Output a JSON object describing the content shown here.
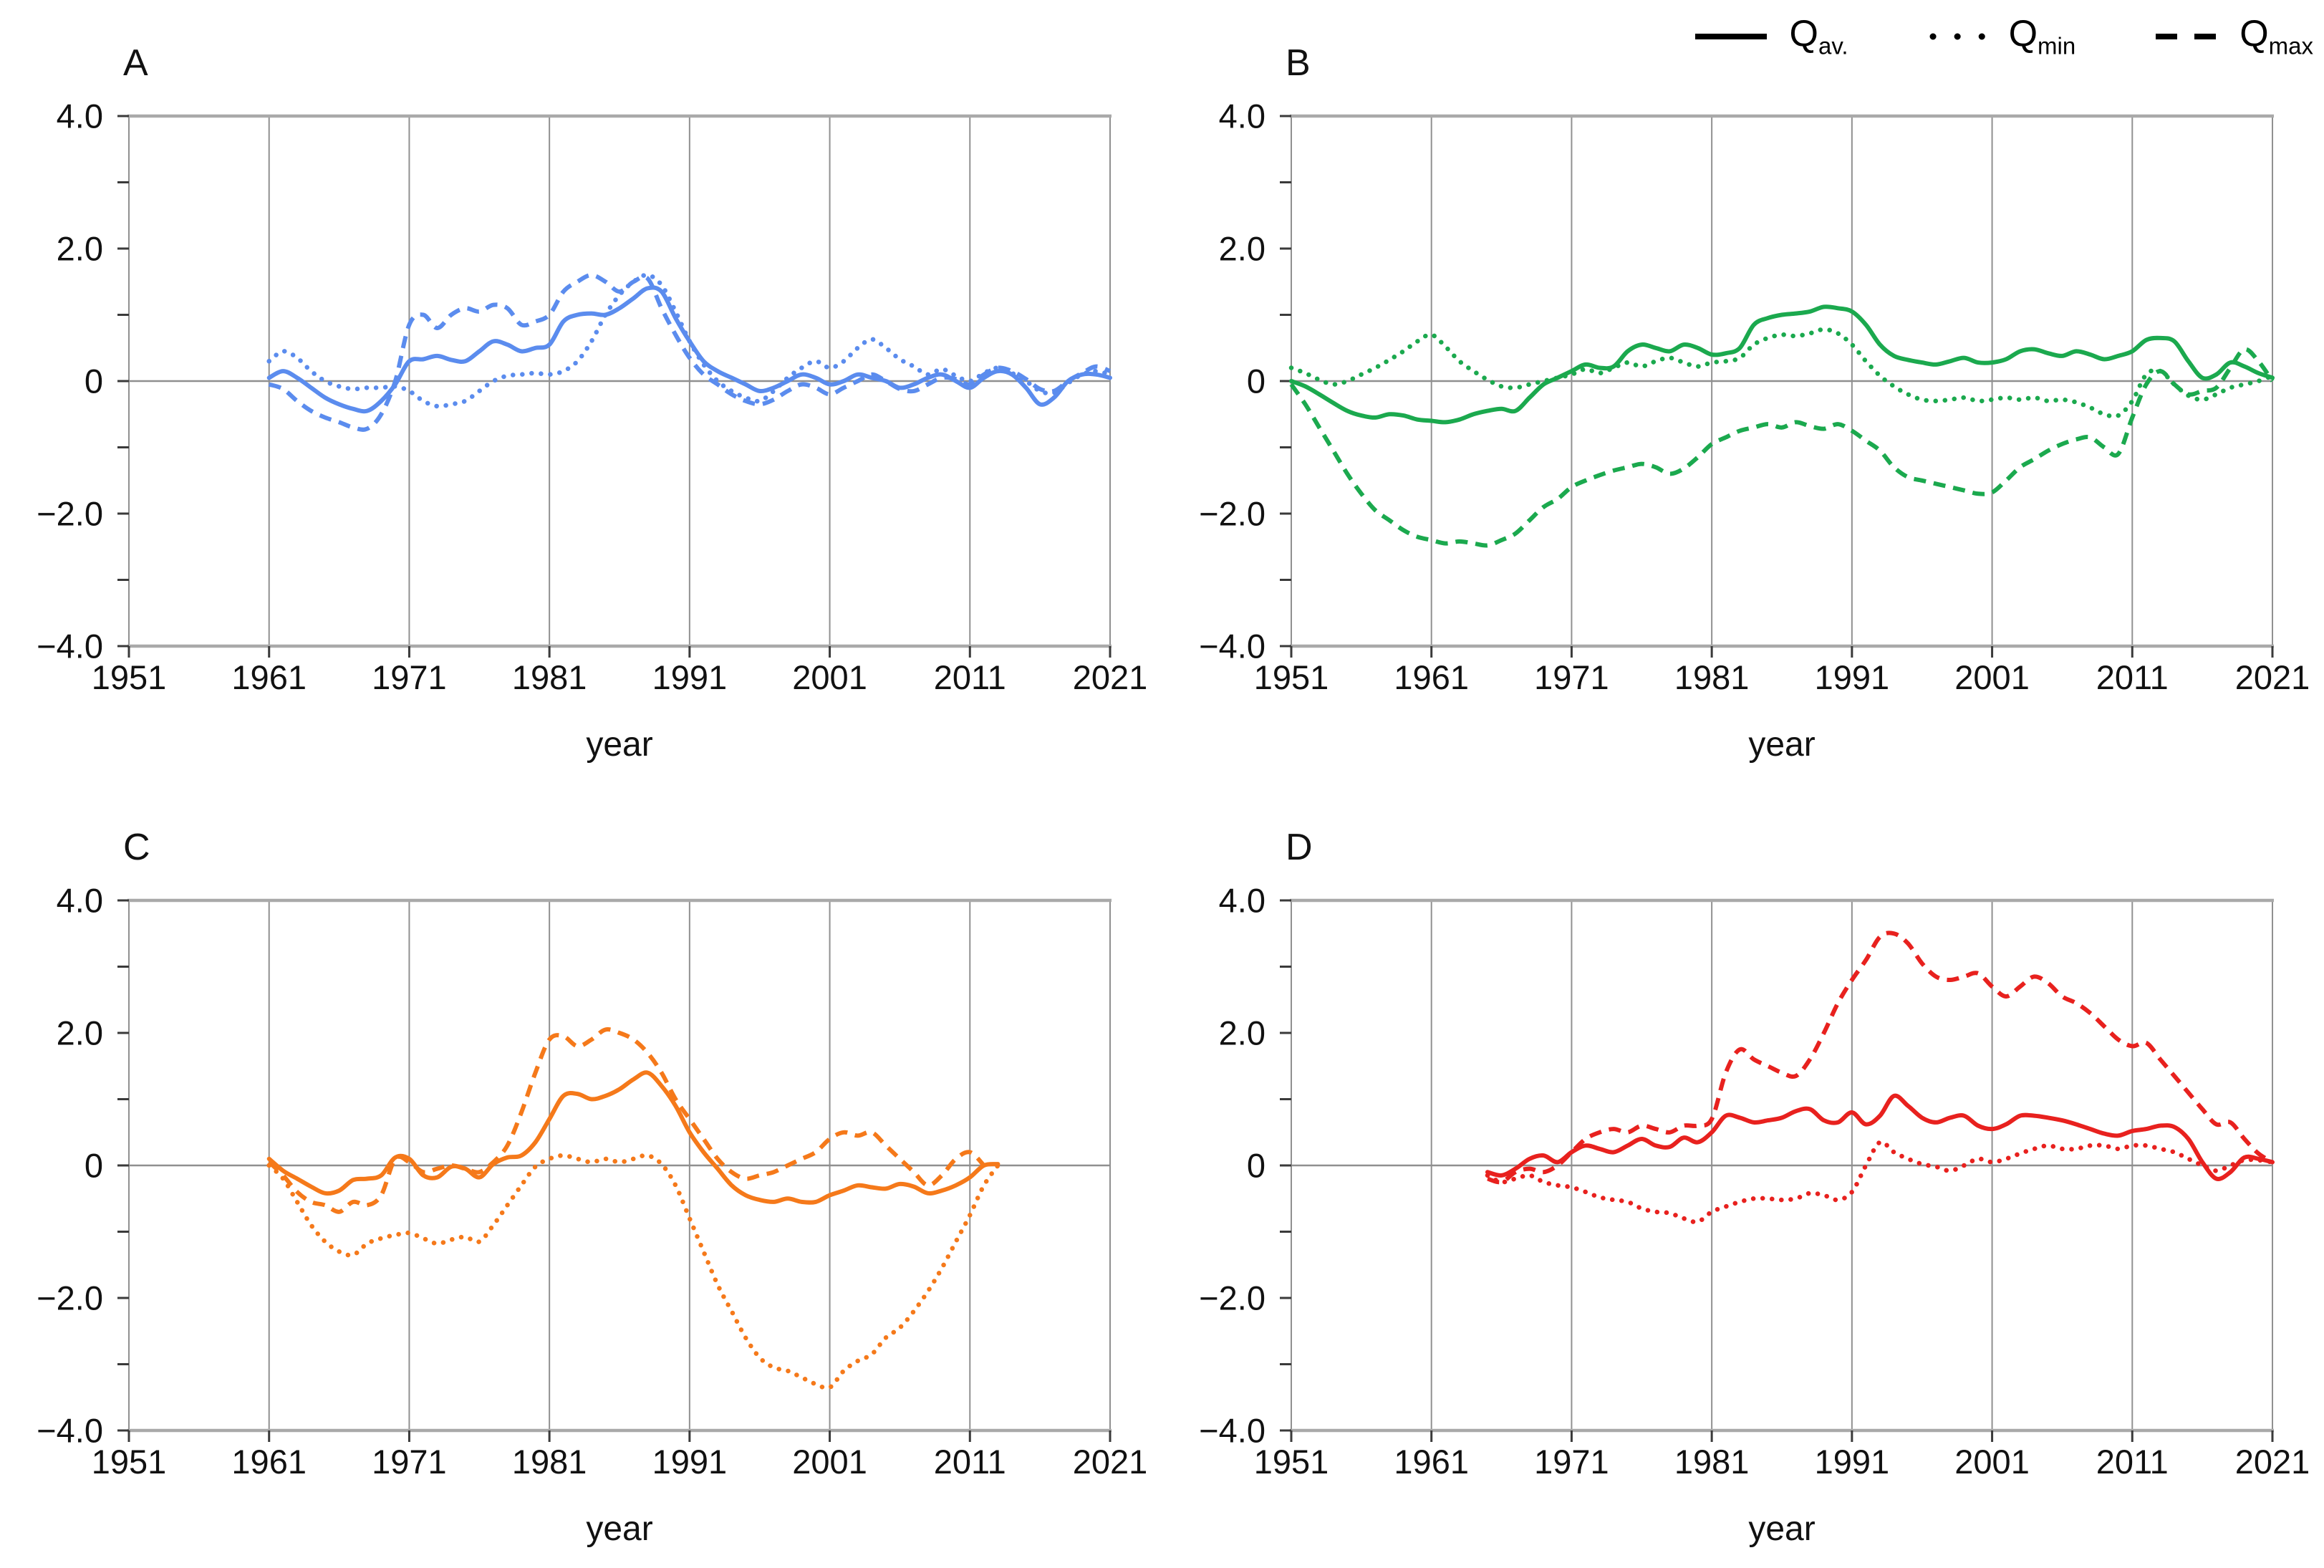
{
  "legend": {
    "items": [
      {
        "main": "Q",
        "sub": "av.",
        "style": "solid"
      },
      {
        "main": "Q",
        "sub": "min",
        "style": "dotted"
      },
      {
        "main": "Q",
        "sub": "max",
        "style": "dashed"
      }
    ]
  },
  "axis": {
    "x_label": "year",
    "x_ticks": [
      "1951",
      "1961",
      "1971",
      "1981",
      "1991",
      "2001",
      "2011",
      "2021"
    ],
    "x_tick_years": [
      1951,
      1961,
      1971,
      1981,
      1991,
      2001,
      2011,
      2021
    ],
    "y_major": [
      {
        "v": 4,
        "label": "4.0"
      },
      {
        "v": 2,
        "label": "2.0"
      },
      {
        "v": 0,
        "label": "0"
      },
      {
        "v": -2,
        "label": "−2.0"
      },
      {
        "v": -4,
        "label": "−4.0"
      }
    ],
    "y_minor": [
      3,
      1,
      -1,
      -3
    ],
    "grid_color": "#909090",
    "border_color": "#a9a9a9",
    "tick_color": "#3a3a3a"
  },
  "chart_data": [
    {
      "id": "A",
      "label": "A",
      "type": "line",
      "color": "#5b8cee",
      "xlim": [
        1951,
        2021
      ],
      "ylim": [
        -4,
        4
      ],
      "series": [
        {
          "name": "Q_av.",
          "style": "solid",
          "start_year": 1961,
          "values": [
            0.05,
            0.15,
            0.05,
            -0.1,
            -0.25,
            -0.35,
            -0.42,
            -0.45,
            -0.3,
            -0.05,
            0.3,
            0.33,
            0.38,
            0.32,
            0.3,
            0.45,
            0.6,
            0.55,
            0.45,
            0.5,
            0.55,
            0.9,
            1.0,
            1.02,
            1.0,
            1.1,
            1.25,
            1.4,
            1.35,
            0.95,
            0.6,
            0.3,
            0.15,
            0.05,
            -0.05,
            -0.15,
            -0.1,
            0.0,
            0.1,
            0.05,
            -0.05,
            0.0,
            0.1,
            0.05,
            0.0,
            -0.1,
            -0.05,
            0.05,
            0.1,
            0.0,
            -0.1,
            0.05,
            0.15,
            0.1,
            -0.1,
            -0.35,
            -0.25,
            0.0,
            0.1,
            0.1,
            0.05
          ]
        },
        {
          "name": "Q_min",
          "style": "dotted",
          "start_year": 1961,
          "values": [
            0.3,
            0.45,
            0.35,
            0.15,
            0.0,
            -0.08,
            -0.12,
            -0.1,
            -0.1,
            -0.08,
            -0.15,
            -0.3,
            -0.38,
            -0.35,
            -0.3,
            -0.15,
            0.0,
            0.08,
            0.1,
            0.12,
            0.1,
            0.15,
            0.3,
            0.6,
            1.0,
            1.3,
            1.5,
            1.6,
            1.45,
            1.05,
            0.6,
            0.25,
            0.0,
            -0.15,
            -0.25,
            -0.3,
            -0.15,
            0.05,
            0.2,
            0.3,
            0.2,
            0.3,
            0.5,
            0.63,
            0.5,
            0.33,
            0.22,
            0.1,
            0.18,
            0.08,
            0.0,
            0.12,
            0.2,
            0.12,
            0.0,
            -0.15,
            -0.18,
            -0.03,
            0.1,
            0.15,
            0.1
          ]
        },
        {
          "name": "Q_max",
          "style": "dashed",
          "start_year": 1961,
          "values": [
            -0.05,
            -0.12,
            -0.3,
            -0.45,
            -0.55,
            -0.62,
            -0.7,
            -0.72,
            -0.5,
            0.0,
            0.85,
            1.0,
            0.8,
            1.0,
            1.1,
            1.05,
            1.15,
            1.1,
            0.85,
            0.9,
            1.0,
            1.35,
            1.5,
            1.6,
            1.5,
            1.35,
            1.5,
            1.55,
            1.1,
            0.7,
            0.35,
            0.1,
            -0.05,
            -0.2,
            -0.3,
            -0.35,
            -0.28,
            -0.15,
            -0.05,
            -0.1,
            -0.2,
            -0.1,
            0.0,
            0.1,
            0.0,
            -0.12,
            -0.15,
            -0.05,
            0.05,
            0.03,
            -0.05,
            0.1,
            0.2,
            0.15,
            0.03,
            -0.12,
            -0.15,
            0.0,
            0.12,
            0.22,
            0.15
          ]
        }
      ]
    },
    {
      "id": "B",
      "label": "B",
      "type": "line",
      "color": "#1ba94e",
      "xlim": [
        1951,
        2021
      ],
      "ylim": [
        -4,
        4
      ],
      "series": [
        {
          "name": "Q_av.",
          "style": "solid",
          "start_year": 1951,
          "values": [
            0.0,
            -0.08,
            -0.2,
            -0.33,
            -0.45,
            -0.52,
            -0.55,
            -0.5,
            -0.52,
            -0.58,
            -0.6,
            -0.62,
            -0.58,
            -0.5,
            -0.45,
            -0.42,
            -0.45,
            -0.25,
            -0.05,
            0.05,
            0.15,
            0.25,
            0.2,
            0.22,
            0.45,
            0.55,
            0.5,
            0.45,
            0.55,
            0.5,
            0.4,
            0.42,
            0.5,
            0.85,
            0.95,
            1.0,
            1.02,
            1.05,
            1.12,
            1.1,
            1.05,
            0.85,
            0.55,
            0.38,
            0.32,
            0.28,
            0.25,
            0.3,
            0.35,
            0.28,
            0.28,
            0.33,
            0.45,
            0.48,
            0.42,
            0.38,
            0.45,
            0.4,
            0.33,
            0.38,
            0.45,
            0.62,
            0.65,
            0.6,
            0.3,
            0.05,
            0.1,
            0.28,
            0.22,
            0.12,
            0.05
          ]
        },
        {
          "name": "Q_min",
          "style": "dotted",
          "start_year": 1951,
          "values": [
            0.2,
            0.12,
            0.02,
            -0.05,
            0.0,
            0.1,
            0.2,
            0.32,
            0.45,
            0.6,
            0.7,
            0.52,
            0.3,
            0.15,
            0.02,
            -0.08,
            -0.1,
            -0.05,
            0.0,
            0.05,
            0.1,
            0.18,
            0.12,
            0.2,
            0.28,
            0.22,
            0.3,
            0.35,
            0.28,
            0.22,
            0.28,
            0.3,
            0.35,
            0.55,
            0.65,
            0.7,
            0.68,
            0.72,
            0.78,
            0.72,
            0.55,
            0.3,
            0.08,
            -0.08,
            -0.2,
            -0.28,
            -0.3,
            -0.28,
            -0.25,
            -0.3,
            -0.28,
            -0.25,
            -0.28,
            -0.25,
            -0.3,
            -0.28,
            -0.32,
            -0.4,
            -0.5,
            -0.52,
            -0.3,
            0.1,
            0.15,
            -0.05,
            -0.22,
            -0.28,
            -0.2,
            -0.1,
            -0.05,
            0.0,
            0.08
          ]
        },
        {
          "name": "Q_max",
          "style": "dashed",
          "start_year": 1951,
          "values": [
            -0.05,
            -0.35,
            -0.7,
            -1.05,
            -1.4,
            -1.7,
            -1.95,
            -2.1,
            -2.25,
            -2.35,
            -2.4,
            -2.45,
            -2.42,
            -2.45,
            -2.48,
            -2.4,
            -2.3,
            -2.1,
            -1.9,
            -1.78,
            -1.6,
            -1.5,
            -1.42,
            -1.35,
            -1.3,
            -1.25,
            -1.3,
            -1.4,
            -1.32,
            -1.15,
            -0.95,
            -0.85,
            -0.75,
            -0.7,
            -0.65,
            -0.7,
            -0.62,
            -0.68,
            -0.72,
            -0.65,
            -0.75,
            -0.9,
            -1.05,
            -1.3,
            -1.45,
            -1.5,
            -1.55,
            -1.6,
            -1.65,
            -1.7,
            -1.68,
            -1.5,
            -1.3,
            -1.18,
            -1.05,
            -0.95,
            -0.88,
            -0.85,
            -1.0,
            -1.1,
            -0.55,
            -0.05,
            0.15,
            -0.05,
            -0.2,
            -0.15,
            -0.1,
            0.2,
            0.48,
            0.3,
            0.0
          ]
        }
      ]
    },
    {
      "id": "C",
      "label": "C",
      "type": "line",
      "color": "#f5791a",
      "xlim": [
        1951,
        2021
      ],
      "ylim": [
        -4,
        4
      ],
      "series": [
        {
          "name": "Q_av.",
          "style": "solid",
          "start_year": 1961,
          "values": [
            0.1,
            -0.08,
            -0.2,
            -0.32,
            -0.42,
            -0.38,
            -0.22,
            -0.2,
            -0.15,
            0.12,
            0.1,
            -0.15,
            -0.18,
            -0.02,
            -0.05,
            -0.18,
            0.02,
            0.12,
            0.15,
            0.35,
            0.7,
            1.05,
            1.08,
            1.0,
            1.05,
            1.15,
            1.3,
            1.4,
            1.2,
            0.9,
            0.5,
            0.2,
            -0.05,
            -0.3,
            -0.45,
            -0.52,
            -0.55,
            -0.5,
            -0.55,
            -0.55,
            -0.45,
            -0.38,
            -0.3,
            -0.33,
            -0.35,
            -0.28,
            -0.32,
            -0.42,
            -0.38,
            -0.3,
            -0.18,
            0.0,
            0.02
          ]
        },
        {
          "name": "Q_min",
          "style": "dotted",
          "start_year": 1961,
          "values": [
            0.0,
            -0.2,
            -0.55,
            -0.9,
            -1.15,
            -1.3,
            -1.35,
            -1.18,
            -1.1,
            -1.05,
            -1.02,
            -1.1,
            -1.18,
            -1.12,
            -1.08,
            -1.15,
            -0.9,
            -0.6,
            -0.3,
            -0.02,
            0.1,
            0.15,
            0.1,
            0.05,
            0.1,
            0.05,
            0.1,
            0.15,
            0.02,
            -0.3,
            -0.8,
            -1.3,
            -1.8,
            -2.2,
            -2.6,
            -2.9,
            -3.05,
            -3.1,
            -3.2,
            -3.3,
            -3.35,
            -3.1,
            -2.95,
            -2.85,
            -2.6,
            -2.45,
            -2.2,
            -1.9,
            -1.55,
            -1.15,
            -0.75,
            -0.3,
            0.0
          ]
        },
        {
          "name": "Q_max",
          "style": "dashed",
          "start_year": 1961,
          "values": [
            0.05,
            -0.15,
            -0.4,
            -0.55,
            -0.6,
            -0.7,
            -0.55,
            -0.6,
            -0.45,
            0.1,
            0.05,
            -0.1,
            -0.05,
            0.0,
            -0.05,
            -0.1,
            0.05,
            0.3,
            0.8,
            1.4,
            1.9,
            1.95,
            1.8,
            1.9,
            2.05,
            2.0,
            1.9,
            1.7,
            1.4,
            1.0,
            0.7,
            0.4,
            0.1,
            -0.1,
            -0.2,
            -0.15,
            -0.1,
            0.0,
            0.1,
            0.2,
            0.4,
            0.5,
            0.45,
            0.5,
            0.3,
            0.1,
            -0.1,
            -0.3,
            -0.15,
            0.1,
            0.2,
            0.0
          ]
        }
      ]
    },
    {
      "id": "D",
      "label": "D",
      "type": "line",
      "color": "#e8211e",
      "xlim": [
        1951,
        2021
      ],
      "ylim": [
        -4,
        4
      ],
      "series": [
        {
          "name": "Q_av.",
          "style": "solid",
          "start_year": 1965,
          "values": [
            -0.1,
            -0.15,
            -0.05,
            0.1,
            0.15,
            0.05,
            0.2,
            0.3,
            0.25,
            0.2,
            0.3,
            0.4,
            0.3,
            0.28,
            0.42,
            0.35,
            0.5,
            0.75,
            0.72,
            0.65,
            0.68,
            0.72,
            0.82,
            0.85,
            0.68,
            0.65,
            0.8,
            0.62,
            0.75,
            1.05,
            0.9,
            0.72,
            0.65,
            0.72,
            0.75,
            0.6,
            0.55,
            0.62,
            0.75,
            0.75,
            0.72,
            0.68,
            0.62,
            0.55,
            0.48,
            0.45,
            0.52,
            0.55,
            0.6,
            0.58,
            0.4,
            0.05,
            -0.2,
            -0.1,
            0.12,
            0.1,
            0.05
          ]
        },
        {
          "name": "Q_min",
          "style": "dotted",
          "start_year": 1965,
          "values": [
            -0.15,
            -0.25,
            -0.2,
            -0.15,
            -0.25,
            -0.3,
            -0.33,
            -0.4,
            -0.48,
            -0.52,
            -0.55,
            -0.65,
            -0.7,
            -0.72,
            -0.8,
            -0.85,
            -0.7,
            -0.62,
            -0.55,
            -0.5,
            -0.5,
            -0.52,
            -0.5,
            -0.42,
            -0.45,
            -0.52,
            -0.4,
            0.0,
            0.35,
            0.2,
            0.1,
            0.02,
            -0.02,
            -0.08,
            0.0,
            0.1,
            0.05,
            0.1,
            0.18,
            0.25,
            0.3,
            0.25,
            0.25,
            0.3,
            0.3,
            0.25,
            0.3,
            0.3,
            0.25,
            0.2,
            0.1,
            0.0,
            -0.08,
            0.0,
            0.08,
            0.08,
            0.05
          ]
        },
        {
          "name": "Q_max",
          "style": "dashed",
          "start_year": 1965,
          "values": [
            -0.2,
            -0.25,
            -0.1,
            -0.05,
            -0.1,
            0.0,
            0.2,
            0.4,
            0.5,
            0.55,
            0.5,
            0.6,
            0.55,
            0.5,
            0.6,
            0.6,
            0.7,
            1.4,
            1.75,
            1.6,
            1.5,
            1.4,
            1.35,
            1.6,
            2.0,
            2.45,
            2.8,
            3.1,
            3.45,
            3.5,
            3.35,
            3.05,
            2.85,
            2.8,
            2.85,
            2.9,
            2.7,
            2.55,
            2.7,
            2.85,
            2.75,
            2.55,
            2.45,
            2.3,
            2.1,
            1.9,
            1.8,
            1.85,
            1.6,
            1.35,
            1.1,
            0.85,
            0.62,
            0.65,
            0.4,
            0.18,
            0.05
          ]
        }
      ]
    }
  ]
}
